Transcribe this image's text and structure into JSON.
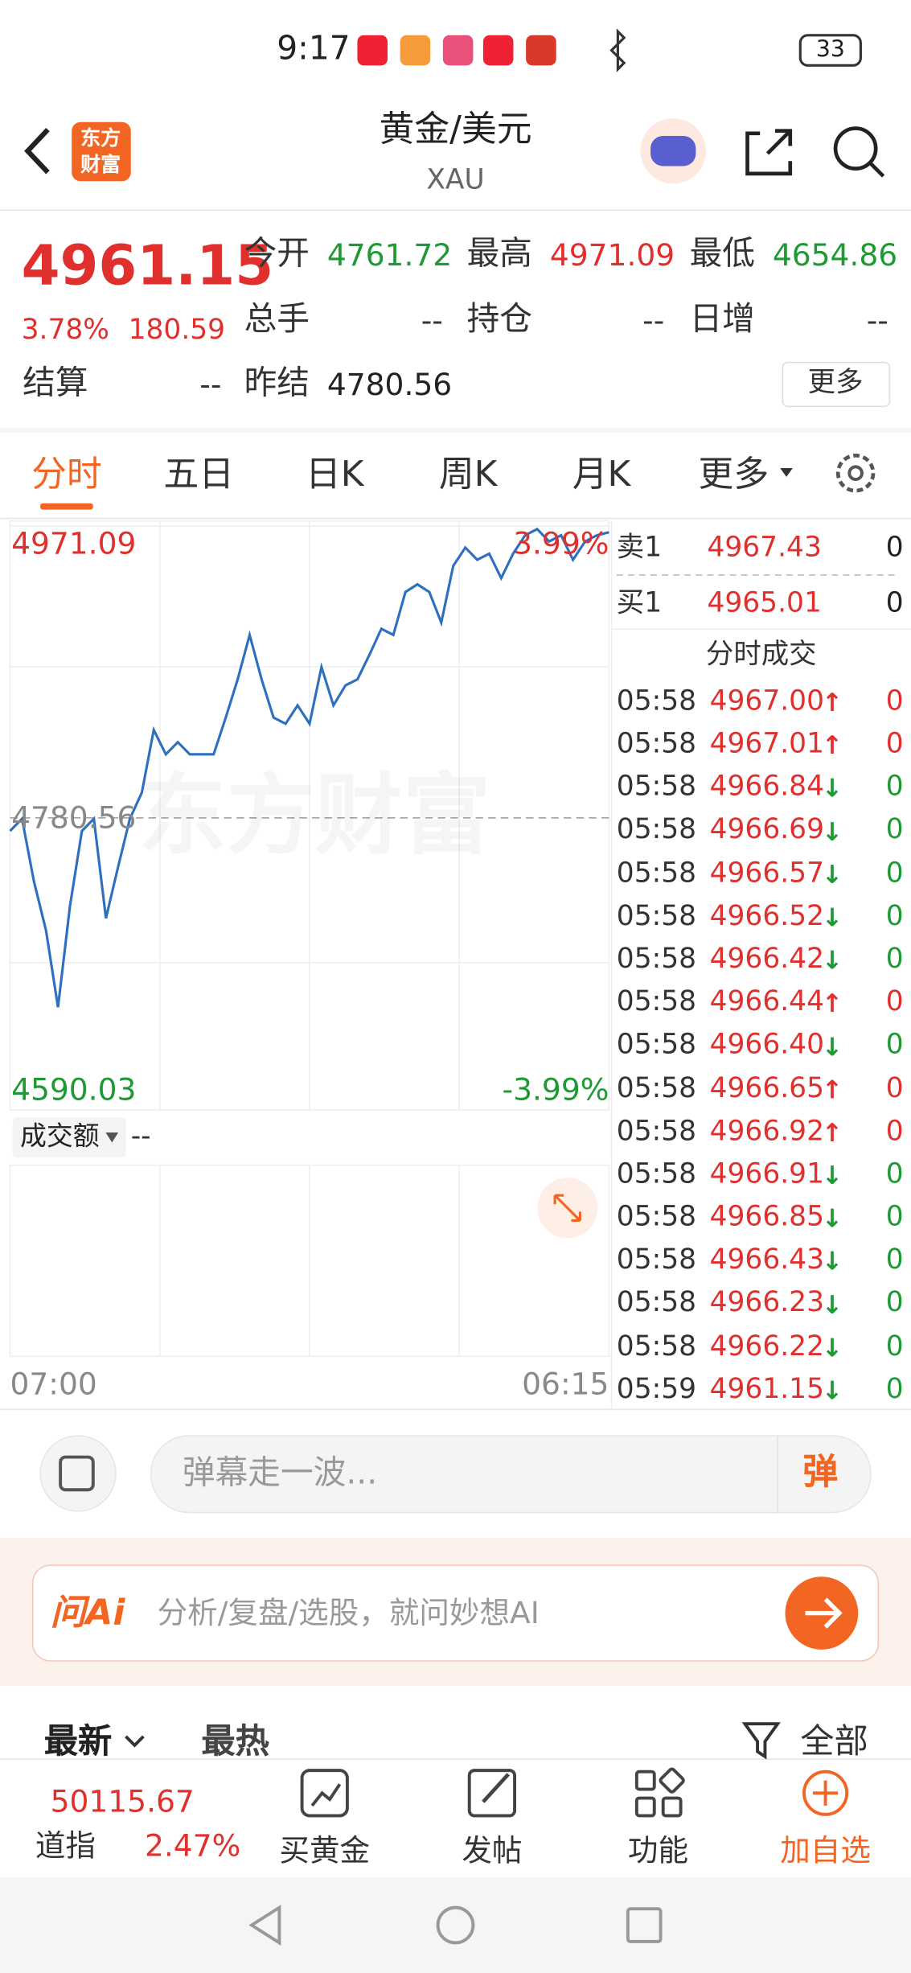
{
  "status_bar": {
    "time": "9:17",
    "battery": "33"
  },
  "header": {
    "logo": [
      "东方",
      "财富"
    ],
    "title": "黄金/美元",
    "subtitle": "XAU"
  },
  "quote": {
    "price": "4961.15",
    "change_pct": "3.78%",
    "change": "180.59",
    "more": "更多",
    "fields": [
      {
        "label": "今开",
        "value": "4761.72"
      },
      {
        "label": "最高",
        "value": "4971.09"
      },
      {
        "label": "最低",
        "value": "4654.86"
      },
      {
        "label": "总手",
        "value": "--"
      },
      {
        "label": "持仓",
        "value": "--"
      },
      {
        "label": "日增",
        "value": "--"
      },
      {
        "label": "结算",
        "value": "--"
      },
      {
        "label": "昨结",
        "value": "4780.56"
      }
    ]
  },
  "tabs": [
    "分时",
    "五日",
    "日K",
    "周K",
    "月K",
    "更多"
  ],
  "chart": {
    "type": "line",
    "color": "#2f6fbf",
    "watermark": "东方财富",
    "values": [
      4772,
      4780,
      4739,
      4707,
      4657,
      4723,
      4772,
      4780,
      4715,
      4748,
      4780,
      4797,
      4838,
      4822,
      4830,
      4822,
      4822,
      4822,
      4846,
      4871,
      4900,
      4871,
      4846,
      4842,
      4854,
      4842,
      4879,
      4854,
      4867,
      4871,
      4887,
      4904,
      4900,
      4928,
      4933,
      4928,
      4908,
      4945,
      4957,
      4949,
      4953,
      4937,
      4953,
      4965,
      4969,
      4961,
      4965,
      4949,
      4961,
      4965,
      4967
    ],
    "ylim": [
      4590.03,
      4971.09
    ],
    "yticks": [
      4590.03,
      4780.56,
      4971.09
    ],
    "pct_labels": [
      "3.99%",
      "-3.99%"
    ],
    "x_labels": [
      "07:00",
      "06:15"
    ],
    "volume_label": "成交额",
    "volume_value": "--"
  },
  "order_book": {
    "asks": [
      {
        "label": "卖1",
        "price": "4967.43",
        "volume": "0"
      }
    ],
    "bids": [
      {
        "label": "买1",
        "price": "4965.01",
        "volume": "0"
      }
    ],
    "trades_title": "分时成交",
    "trades": [
      {
        "time": "05:58",
        "price": "4967.00",
        "arrow": "↑",
        "volume": "0"
      },
      {
        "time": "05:58",
        "price": "4967.01",
        "arrow": "↑",
        "volume": "0"
      },
      {
        "time": "05:58",
        "price": "4966.84",
        "arrow": "↓",
        "volume": "0"
      },
      {
        "time": "05:58",
        "price": "4966.69",
        "arrow": "↓",
        "volume": "0"
      },
      {
        "time": "05:58",
        "price": "4966.57",
        "arrow": "↓",
        "volume": "0"
      },
      {
        "time": "05:58",
        "price": "4966.52",
        "arrow": "↓",
        "volume": "0"
      },
      {
        "time": "05:58",
        "price": "4966.42",
        "arrow": "↓",
        "volume": "0"
      },
      {
        "time": "05:58",
        "price": "4966.44",
        "arrow": "↑",
        "volume": "0"
      },
      {
        "time": "05:58",
        "price": "4966.40",
        "arrow": "↓",
        "volume": "0"
      },
      {
        "time": "05:58",
        "price": "4966.65",
        "arrow": "↑",
        "volume": "0"
      },
      {
        "time": "05:58",
        "price": "4966.92",
        "arrow": "↑",
        "volume": "0"
      },
      {
        "time": "05:58",
        "price": "4966.91",
        "arrow": "↓",
        "volume": "0"
      },
      {
        "time": "05:58",
        "price": "4966.85",
        "arrow": "↓",
        "volume": "0"
      },
      {
        "time": "05:58",
        "price": "4966.43",
        "arrow": "↓",
        "volume": "0"
      },
      {
        "time": "05:58",
        "price": "4966.23",
        "arrow": "↓",
        "volume": "0"
      },
      {
        "time": "05:58",
        "price": "4966.22",
        "arrow": "↓",
        "volume": "0"
      },
      {
        "time": "05:59",
        "price": "4961.15",
        "arrow": "↓",
        "volume": "0"
      }
    ]
  },
  "comment_bar": {
    "placeholder": "弹幕走一波...",
    "button": "弹"
  },
  "ai_bar": {
    "logo": "问Ai",
    "placeholder": "分析/复盘/选股，就问妙想AI"
  },
  "feed": {
    "tabs": [
      "最新",
      "最热"
    ],
    "filter": "全部"
  },
  "bottom_nav": {
    "index_value": "50115.67",
    "index_name": "道指",
    "index_change": "2.47%",
    "items": [
      "买黄金",
      "发帖",
      "功能",
      "加自选"
    ]
  }
}
